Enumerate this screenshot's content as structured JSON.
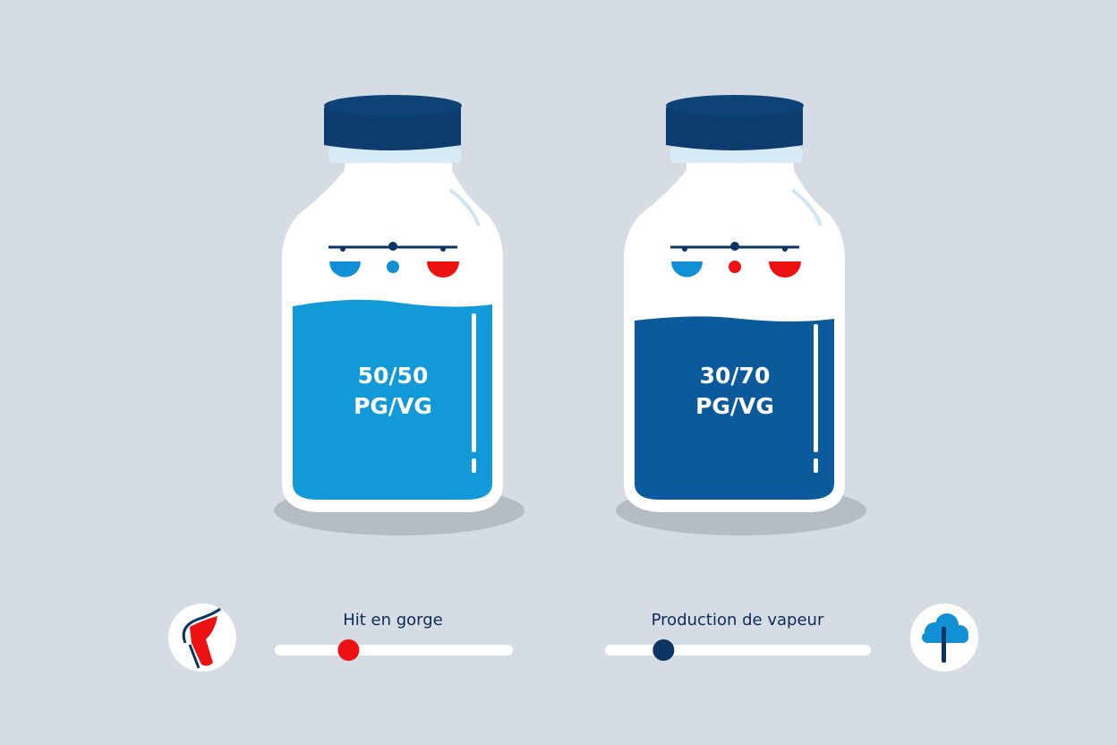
{
  "bottles": [
    {
      "ratio": "50/50",
      "unit": "PG/VG",
      "liquid_color": "#129ad8",
      "liquid_level": 0.55
    },
    {
      "ratio": "30/70",
      "unit": "PG/VG",
      "liquid_color": "#0b5a9c",
      "liquid_level": 0.5
    }
  ],
  "sliders": [
    {
      "label": "Hit en gorge",
      "value": 0.31,
      "knob_color": "#ee1111",
      "icon": "throat-icon"
    },
    {
      "label": "Production de vapeur",
      "value": 0.22,
      "knob_color": "#0d3563",
      "icon": "cloud-icon"
    }
  ],
  "colors": {
    "background": "#d5dce3",
    "cap": "#0d3c6e",
    "accent_blue": "#1290d6",
    "accent_red": "#ee1111"
  }
}
